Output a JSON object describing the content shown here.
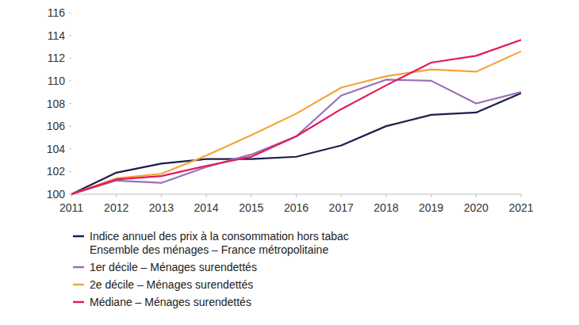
{
  "chart_data": {
    "type": "line",
    "x": [
      2011,
      2012,
      2013,
      2014,
      2015,
      2016,
      2017,
      2018,
      2019,
      2020,
      2021
    ],
    "xlim": [
      2011,
      2021
    ],
    "xticks": [
      2011,
      2012,
      2013,
      2014,
      2015,
      2016,
      2017,
      2018,
      2019,
      2020,
      2021
    ],
    "ylim": [
      100,
      116
    ],
    "yticks": [
      100,
      102,
      104,
      106,
      108,
      110,
      112,
      114,
      116
    ],
    "grid": false,
    "legend": "bottom",
    "series": [
      {
        "name": "Indice annuel des prix à la consommation hors tabac\nEnsemble des ménages – France métropolitaine",
        "color": "#1c1f4d",
        "values": [
          100,
          101.9,
          102.7,
          103.1,
          103.1,
          103.3,
          104.3,
          106.0,
          107.0,
          107.2,
          108.9
        ]
      },
      {
        "name": "1er décile – Ménages surendettés",
        "color": "#9c6fb6",
        "values": [
          100,
          101.2,
          101.0,
          102.4,
          103.5,
          105.1,
          108.7,
          110.1,
          110.0,
          108.0,
          109.0
        ]
      },
      {
        "name": "2e décile – Ménages surendettés",
        "color": "#f4a43a",
        "values": [
          100,
          101.4,
          101.8,
          103.4,
          105.2,
          107.1,
          109.4,
          110.4,
          111.0,
          110.8,
          112.6
        ]
      },
      {
        "name": "Médiane – Ménages surendettés",
        "color": "#e4195f",
        "values": [
          100,
          101.3,
          101.6,
          102.5,
          103.3,
          105.1,
          107.5,
          109.6,
          111.6,
          112.2,
          113.6
        ]
      }
    ]
  }
}
